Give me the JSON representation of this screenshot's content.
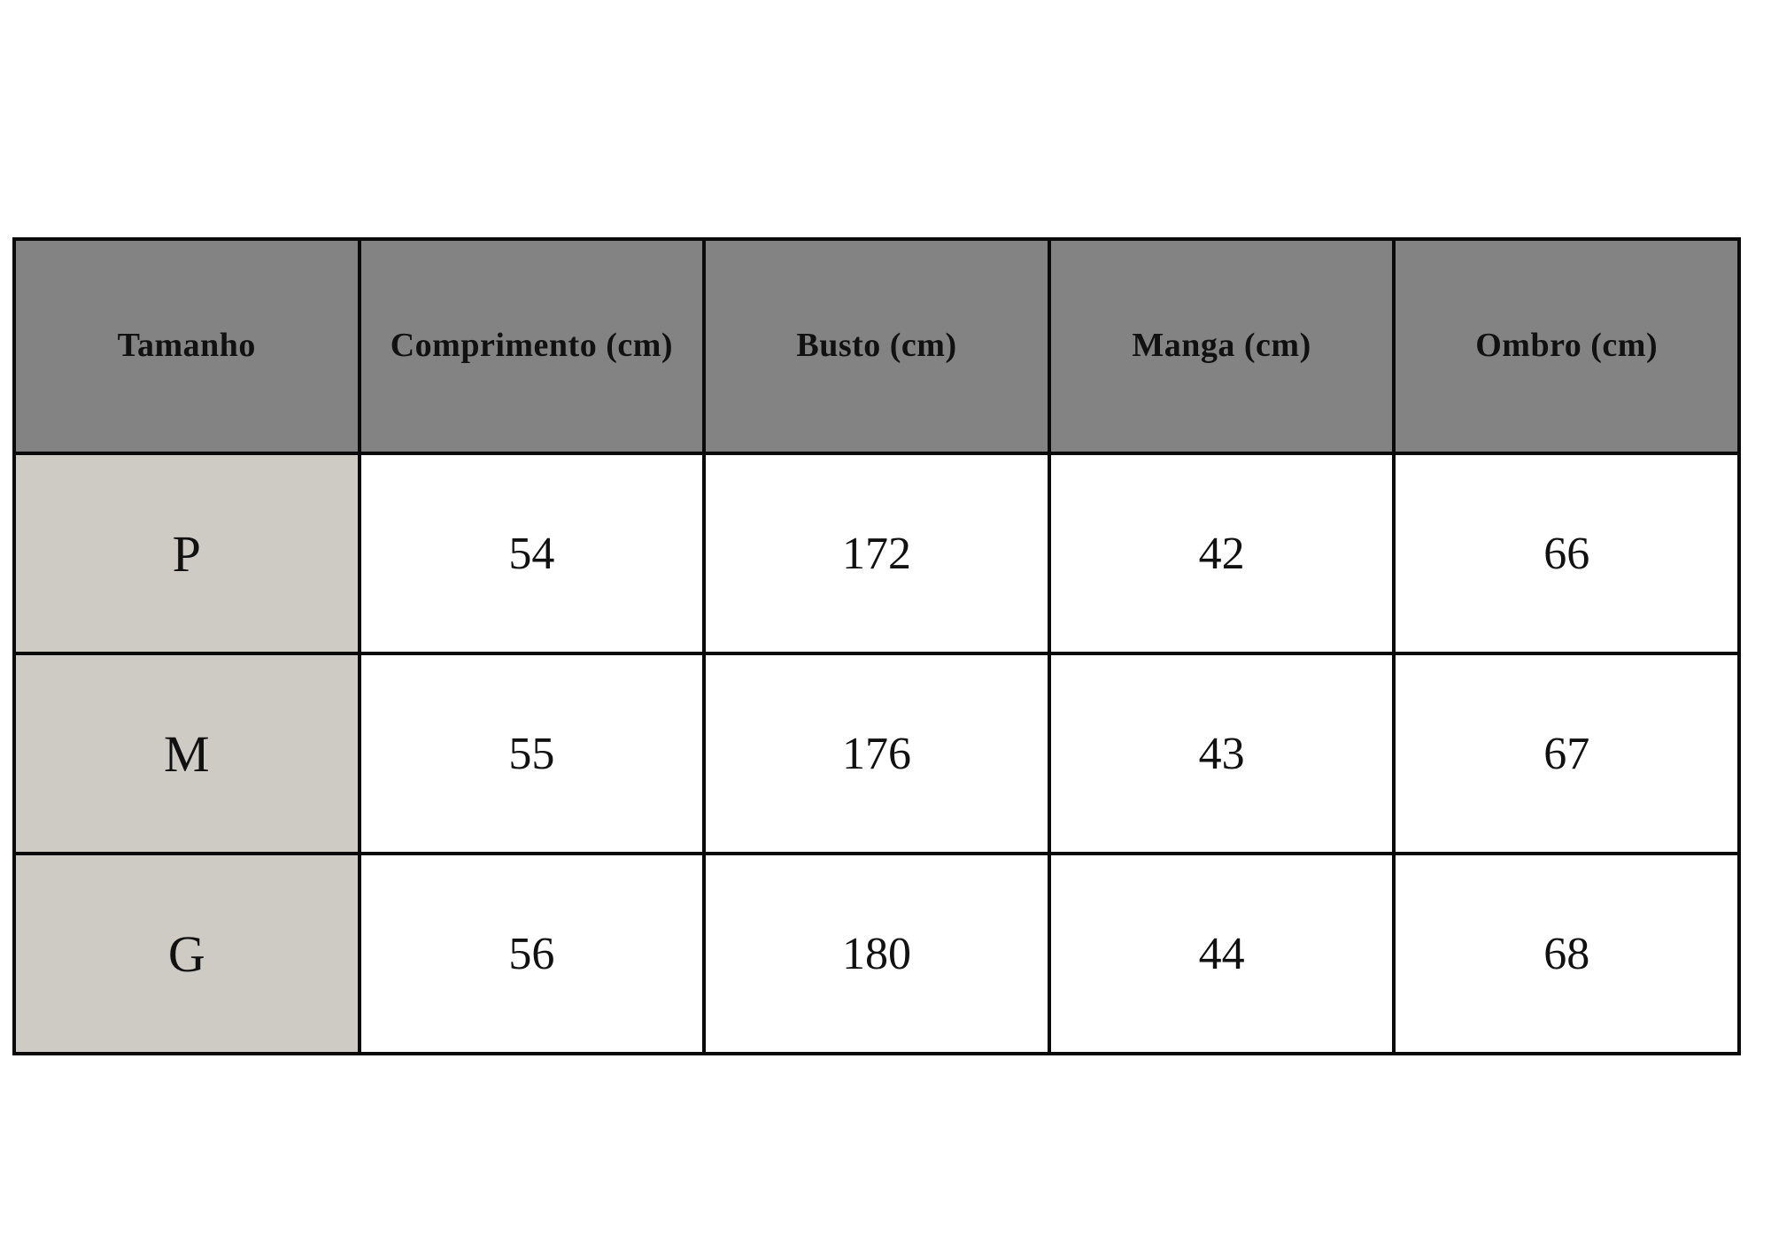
{
  "table": {
    "name": "size-chart",
    "columns": [
      {
        "label": "Tamanho"
      },
      {
        "label": "Comprimento (cm)"
      },
      {
        "label": "Busto (cm)"
      },
      {
        "label": "Manga (cm)"
      },
      {
        "label": "Ombro (cm)"
      }
    ],
    "rows": [
      {
        "size": "P",
        "comprimento": "54",
        "busto": "172",
        "manga": "42",
        "ombro": "66"
      },
      {
        "size": "M",
        "comprimento": "55",
        "busto": "176",
        "manga": "43",
        "ombro": "67"
      },
      {
        "size": "G",
        "comprimento": "56",
        "busto": "180",
        "manga": "44",
        "ombro": "68"
      }
    ]
  },
  "colors": {
    "header_bg": "#838383",
    "size_column_bg": "#cecac4",
    "cell_bg": "#ffffff",
    "border": "#0a0a0a",
    "text": "#111111",
    "page_bg": "#ffffff"
  }
}
